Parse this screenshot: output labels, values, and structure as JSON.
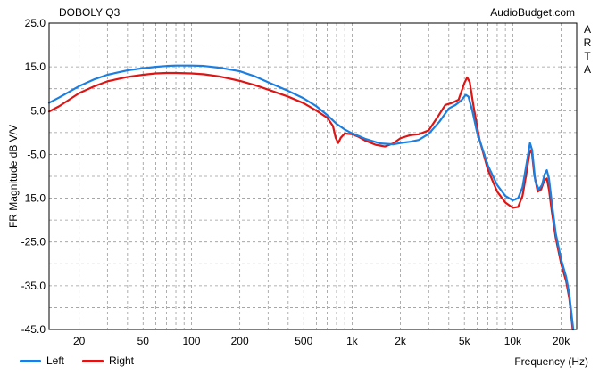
{
  "header": {
    "title": "DOBOLY Q3",
    "brand": "AudioBudget.com",
    "side_label": "ARTA"
  },
  "legend": [
    {
      "label": "Left",
      "color": "#1a7fe0"
    },
    {
      "label": "Right",
      "color": "#dd1515"
    }
  ],
  "chart_data": {
    "type": "line",
    "title": "DOBOLY Q3",
    "xlabel": "Frequency (Hz)",
    "ylabel": "FR Magnitude dB V/V",
    "x_scale": "log",
    "xlim": [
      13,
      25000
    ],
    "ylim": [
      -45,
      25
    ],
    "grid": true,
    "legend_position": "bottom-left",
    "x_tick_labels": [
      "20",
      "50",
      "100",
      "200",
      "500",
      "1k",
      "2k",
      "5k",
      "10k",
      "20k"
    ],
    "x_tick_values": [
      20,
      50,
      100,
      200,
      500,
      1000,
      2000,
      5000,
      10000,
      20000
    ],
    "y_tick_labels": [
      "25.0",
      "15.0",
      "5.0",
      "-5.0",
      "-15.0",
      "-25.0",
      "-35.0",
      "-45.0"
    ],
    "y_tick_values": [
      25,
      15,
      5,
      -5,
      -15,
      -25,
      -35,
      -45
    ],
    "series": [
      {
        "name": "Left",
        "color": "#1a7fe0",
        "points": [
          [
            13,
            6.8
          ],
          [
            15,
            8.0
          ],
          [
            20,
            10.6
          ],
          [
            25,
            12.2
          ],
          [
            30,
            13.2
          ],
          [
            40,
            14.2
          ],
          [
            50,
            14.7
          ],
          [
            60,
            15.0
          ],
          [
            70,
            15.2
          ],
          [
            80,
            15.3
          ],
          [
            100,
            15.3
          ],
          [
            120,
            15.2
          ],
          [
            150,
            14.8
          ],
          [
            200,
            14.0
          ],
          [
            250,
            12.8
          ],
          [
            300,
            11.5
          ],
          [
            400,
            9.5
          ],
          [
            500,
            7.8
          ],
          [
            600,
            6.0
          ],
          [
            700,
            4.0
          ],
          [
            800,
            2.0
          ],
          [
            900,
            0.7
          ],
          [
            1000,
            -0.2
          ],
          [
            1100,
            -0.8
          ],
          [
            1200,
            -1.4
          ],
          [
            1500,
            -2.5
          ],
          [
            1800,
            -2.7
          ],
          [
            2000,
            -2.4
          ],
          [
            2300,
            -2.1
          ],
          [
            2600,
            -1.7
          ],
          [
            3000,
            -0.3
          ],
          [
            3500,
            2.5
          ],
          [
            4000,
            5.5
          ],
          [
            4400,
            6.3
          ],
          [
            4800,
            7.4
          ],
          [
            5100,
            8.6
          ],
          [
            5300,
            8.2
          ],
          [
            5600,
            5.0
          ],
          [
            6000,
            0.0
          ],
          [
            7000,
            -7.5
          ],
          [
            8000,
            -12.0
          ],
          [
            9000,
            -14.5
          ],
          [
            10000,
            -15.5
          ],
          [
            10800,
            -15.0
          ],
          [
            11500,
            -12.5
          ],
          [
            12200,
            -7.0
          ],
          [
            12800,
            -2.4
          ],
          [
            13200,
            -4.0
          ],
          [
            13800,
            -11.0
          ],
          [
            14500,
            -13.0
          ],
          [
            15200,
            -12.0
          ],
          [
            15800,
            -9.5
          ],
          [
            16300,
            -8.6
          ],
          [
            16800,
            -10.5
          ],
          [
            17500,
            -16.0
          ],
          [
            18500,
            -23.0
          ],
          [
            20000,
            -29.0
          ],
          [
            21500,
            -33.0
          ],
          [
            22500,
            -37.0
          ],
          [
            23300,
            -42.0
          ],
          [
            23800,
            -45.0
          ]
        ]
      },
      {
        "name": "Right",
        "color": "#dd1515",
        "points": [
          [
            13,
            4.8
          ],
          [
            15,
            6.0
          ],
          [
            20,
            9.0
          ],
          [
            25,
            10.6
          ],
          [
            30,
            11.7
          ],
          [
            40,
            12.7
          ],
          [
            50,
            13.2
          ],
          [
            60,
            13.5
          ],
          [
            70,
            13.6
          ],
          [
            80,
            13.6
          ],
          [
            100,
            13.5
          ],
          [
            120,
            13.3
          ],
          [
            150,
            12.8
          ],
          [
            200,
            11.8
          ],
          [
            250,
            10.8
          ],
          [
            300,
            9.8
          ],
          [
            400,
            8.2
          ],
          [
            500,
            6.7
          ],
          [
            600,
            5.0
          ],
          [
            700,
            3.4
          ],
          [
            760,
            1.5
          ],
          [
            790,
            -1.2
          ],
          [
            820,
            -2.4
          ],
          [
            850,
            -1.2
          ],
          [
            900,
            -0.2
          ],
          [
            1000,
            -0.4
          ],
          [
            1100,
            -1.0
          ],
          [
            1200,
            -1.8
          ],
          [
            1400,
            -2.8
          ],
          [
            1600,
            -3.2
          ],
          [
            1800,
            -2.5
          ],
          [
            2000,
            -1.3
          ],
          [
            2300,
            -0.6
          ],
          [
            2600,
            -0.4
          ],
          [
            3000,
            0.5
          ],
          [
            3400,
            3.5
          ],
          [
            3800,
            6.3
          ],
          [
            4200,
            6.8
          ],
          [
            4600,
            7.5
          ],
          [
            5000,
            11.3
          ],
          [
            5200,
            12.6
          ],
          [
            5400,
            11.5
          ],
          [
            5700,
            6.0
          ],
          [
            6200,
            -1.5
          ],
          [
            7000,
            -8.5
          ],
          [
            8000,
            -13.5
          ],
          [
            9000,
            -16.0
          ],
          [
            10000,
            -17.2
          ],
          [
            10800,
            -17.0
          ],
          [
            11500,
            -14.5
          ],
          [
            12200,
            -9.0
          ],
          [
            12700,
            -4.8
          ],
          [
            13100,
            -3.9
          ],
          [
            13600,
            -9.5
          ],
          [
            14300,
            -13.5
          ],
          [
            15000,
            -13.0
          ],
          [
            15700,
            -11.0
          ],
          [
            16300,
            -10.5
          ],
          [
            16800,
            -13.0
          ],
          [
            17500,
            -18.0
          ],
          [
            18500,
            -24.0
          ],
          [
            20000,
            -30.0
          ],
          [
            21500,
            -34.0
          ],
          [
            22500,
            -38.0
          ],
          [
            23300,
            -43.0
          ],
          [
            23600,
            -45.0
          ]
        ]
      }
    ]
  }
}
